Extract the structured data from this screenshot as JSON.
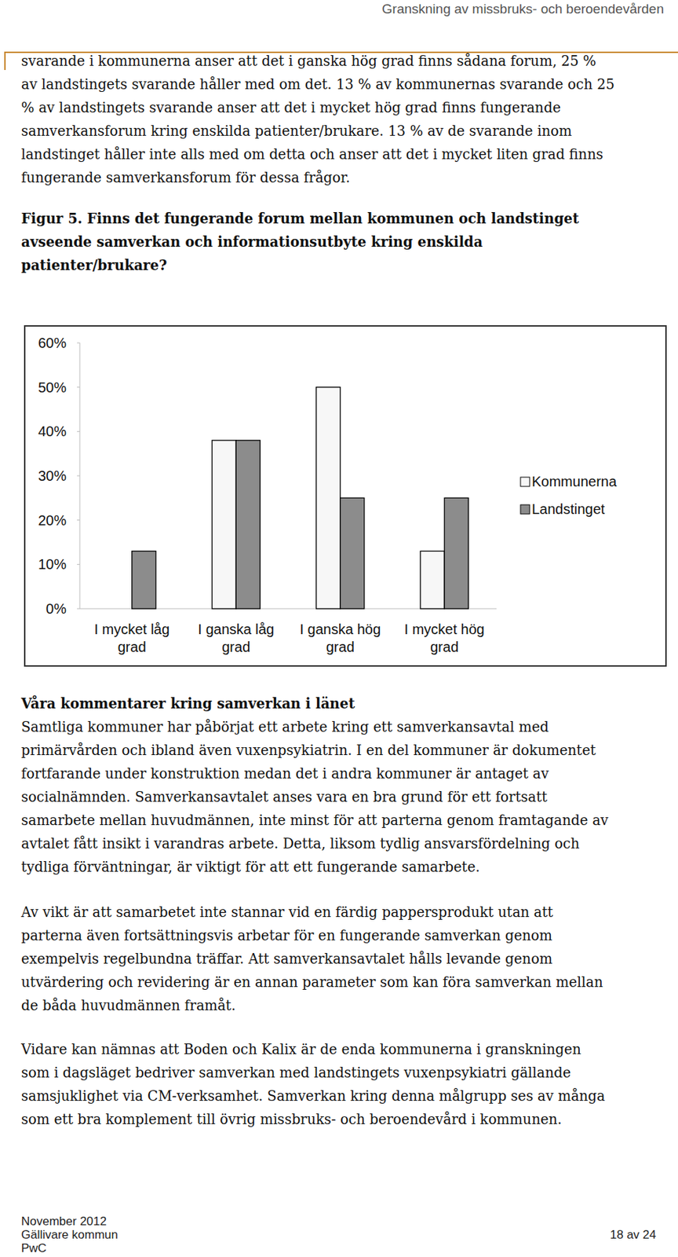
{
  "header": {
    "title": "Granskning av missbruks- och beroendevården"
  },
  "intro": {
    "lines": [
      "svarande i kommunerna anser att det i ganska hög grad finns sådana forum, 25 %",
      "av landstingets svarande håller med om det. 13 % av kommunernas svarande och 25",
      "% av landstingets svarande anser att det i mycket hög grad finns fungerande",
      "samverkansforum kring enskilda patienter/brukare. 13 % av de svarande inom",
      "landstinget håller inte alls med om detta och anser att det i mycket liten grad finns",
      "fungerande samverkansforum för dessa frågor."
    ]
  },
  "figure": {
    "caption_lines": [
      "Figur 5. Finns det fungerande forum mellan kommunen och landstinget",
      "avseende samverkan och informationsutbyte kring enskilda",
      "patienter/brukare?"
    ]
  },
  "chart_data": {
    "type": "bar",
    "categories": [
      "I mycket låg grad",
      "I ganska låg grad",
      "I ganska hög grad",
      "I mycket hög grad"
    ],
    "series": [
      {
        "name": "Kommunerna",
        "color": "#f7f7f7",
        "values": [
          0,
          38,
          50,
          13
        ]
      },
      {
        "name": "Landstinget",
        "color": "#8c8c8c",
        "values": [
          13,
          38,
          25,
          25
        ]
      }
    ],
    "ylim": [
      0,
      60
    ],
    "yticks": [
      {
        "value": 0,
        "label": "0%"
      },
      {
        "value": 10,
        "label": "10%"
      },
      {
        "value": 20,
        "label": "20%"
      },
      {
        "value": 30,
        "label": "30%"
      },
      {
        "value": 40,
        "label": "40%"
      },
      {
        "value": 50,
        "label": "50%"
      },
      {
        "value": 60,
        "label": "60%"
      }
    ],
    "grid": false,
    "legend": "right"
  },
  "comments": {
    "heading": "Våra kommentarer kring samverkan i länet",
    "paragraphs": [
      {
        "lines": [
          "Samtliga kommuner har påbörjat ett arbete kring ett samverkansavtal med",
          "primärvården och ibland även vuxenpsykiatrin. I en del kommuner är dokumentet",
          "fortfarande under konstruktion medan det i andra kommuner är antaget av",
          "socialnämnden. Samverkansavtalet anses vara en bra grund för ett fortsatt",
          "samarbete mellan huvudmännen, inte minst för att parterna genom framtagande av",
          "avtalet fått insikt i varandras arbete. Detta, liksom tydlig ansvarsfördelning och",
          "tydliga förväntningar, är viktigt för att ett fungerande samarbete."
        ]
      },
      {
        "lines": [
          "Av vikt är att samarbetet inte stannar vid en färdig pappersprodukt utan att",
          "parterna även fortsättningsvis arbetar för en fungerande samverkan genom",
          "exempelvis regelbundna träffar. Att samverkansavtalet hålls levande genom",
          "utvärdering och revidering är en annan parameter som kan föra samverkan mellan",
          "de båda huvudmännen framåt."
        ]
      },
      {
        "lines": [
          "Vidare kan nämnas att Boden och Kalix är de enda kommunerna i granskningen",
          "som i dagsläget bedriver samverkan med landstingets vuxenpsykiatri gällande",
          "samsjuklighet via CM-verksamhet. Samverkan kring denna målgrupp ses av många",
          "som ett bra komplement till övrig missbruks- och beroendevård i kommunen."
        ]
      }
    ]
  },
  "footer": {
    "date": "November 2012",
    "client": "Gällivare kommun",
    "company": "PwC",
    "page": "18 av 24"
  }
}
